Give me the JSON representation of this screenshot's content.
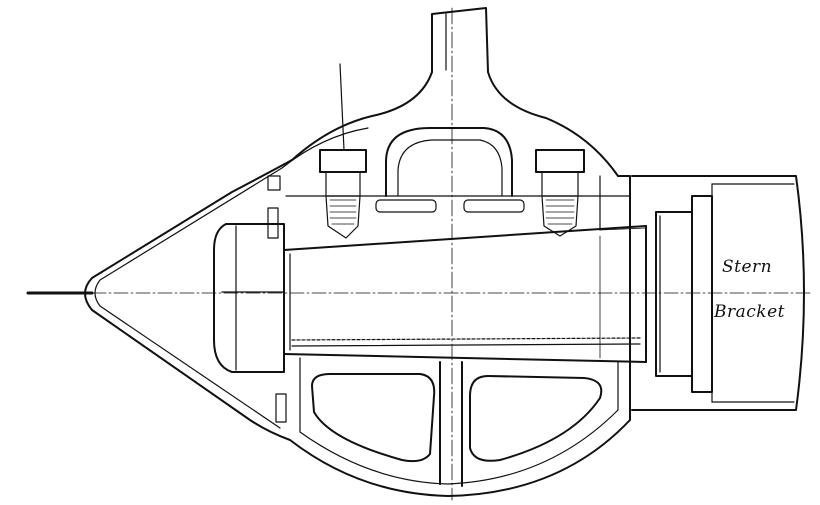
{
  "labels": {
    "stern": "Stern",
    "bracket": "Bracket"
  },
  "colors": {
    "ink": "#111111",
    "paper": "#ffffff"
  }
}
